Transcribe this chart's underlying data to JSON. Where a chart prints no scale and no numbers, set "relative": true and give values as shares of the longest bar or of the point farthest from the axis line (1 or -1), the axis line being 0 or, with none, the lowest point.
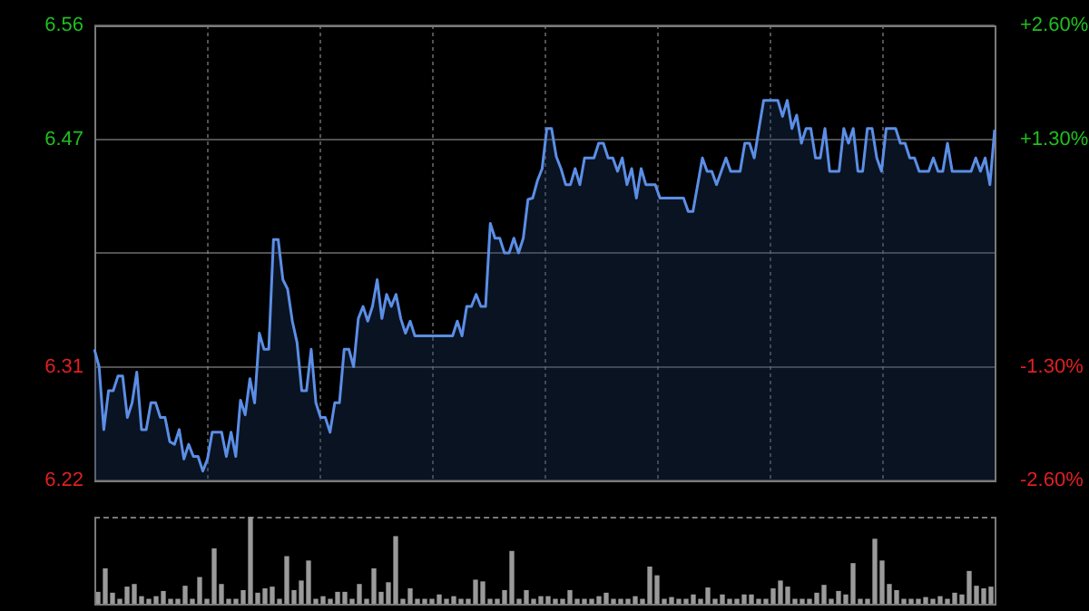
{
  "chart_data": [
    {
      "type": "area",
      "categories": [
        null,
        null,
        null,
        null,
        null,
        null,
        null,
        null,
        null,
        null,
        null,
        null,
        null,
        null,
        null,
        null,
        null,
        null,
        null,
        null,
        null,
        null,
        null,
        null,
        null,
        null,
        null,
        null,
        null,
        null,
        null,
        null,
        null,
        null,
        null,
        null,
        null,
        null,
        null,
        null,
        null,
        null,
        null,
        null,
        null,
        null,
        null,
        null,
        null,
        null,
        null,
        null,
        null,
        null,
        null,
        null,
        null,
        null,
        null,
        null,
        null,
        null,
        null,
        null,
        null,
        null,
        null,
        null,
        null,
        null,
        null,
        null,
        null,
        null,
        null,
        null,
        null,
        null,
        null,
        null,
        null,
        null,
        null,
        null,
        null,
        null,
        null,
        null,
        null,
        null,
        null,
        null,
        null,
        null,
        null,
        null,
        null,
        null,
        null,
        null,
        null,
        null,
        null,
        null,
        null,
        null,
        null,
        null,
        null,
        null,
        null,
        null,
        null,
        null,
        null,
        null,
        null,
        null,
        null,
        null,
        null,
        null,
        null,
        null,
        null,
        null,
        null,
        null,
        null,
        null,
        null,
        null,
        null,
        null,
        null,
        null,
        null,
        null,
        null,
        null,
        null,
        null,
        null,
        null,
        null,
        null,
        null,
        null,
        null,
        null,
        null,
        null,
        null,
        null,
        null,
        null,
        null,
        null,
        null,
        null,
        null,
        null,
        null,
        null,
        null,
        null,
        null,
        null,
        null,
        null,
        null,
        null,
        null,
        null,
        null,
        null,
        null,
        null,
        null,
        null,
        null,
        null,
        null,
        null,
        null,
        null,
        null,
        null,
        null,
        null,
        null,
        null
      ],
      "series": [
        {
          "color": "#5b8ee6",
          "values": [
            6.318,
            6.305,
            6.258,
            6.287,
            6.287,
            6.298,
            6.298,
            6.267,
            6.278,
            6.301,
            6.258,
            6.258,
            6.278,
            6.278,
            6.267,
            6.267,
            6.249,
            6.247,
            6.258,
            6.236,
            6.247,
            6.238,
            6.238,
            6.227,
            6.236,
            6.256,
            6.256,
            6.256,
            6.238,
            6.256,
            6.238,
            6.28,
            6.269,
            6.296,
            6.278,
            6.33,
            6.318,
            6.318,
            6.4,
            6.4,
            6.37,
            6.363,
            6.339,
            6.323,
            6.287,
            6.287,
            6.318,
            6.278,
            6.267,
            6.267,
            6.256,
            6.278,
            6.278,
            6.318,
            6.318,
            6.305,
            6.341,
            6.35,
            6.339,
            6.35,
            6.37,
            6.341,
            6.359,
            6.35,
            6.359,
            6.341,
            6.33,
            6.339,
            6.328,
            6.328,
            6.328,
            6.328,
            6.328,
            6.328,
            6.328,
            6.328,
            6.328,
            6.339,
            6.328,
            6.35,
            6.35,
            6.359,
            6.35,
            6.35,
            6.412,
            6.401,
            6.401,
            6.39,
            6.39,
            6.401,
            6.39,
            6.401,
            6.43,
            6.431,
            6.444,
            6.453,
            6.483,
            6.483,
            6.462,
            6.453,
            6.441,
            6.441,
            6.453,
            6.441,
            6.461,
            6.461,
            6.461,
            6.472,
            6.472,
            6.461,
            6.461,
            6.451,
            6.461,
            6.441,
            6.453,
            6.431,
            6.453,
            6.441,
            6.441,
            6.441,
            6.431,
            6.431,
            6.431,
            6.431,
            6.431,
            6.431,
            6.421,
            6.421,
            6.441,
            6.461,
            6.451,
            6.451,
            6.441,
            6.451,
            6.461,
            6.451,
            6.451,
            6.451,
            6.472,
            6.472,
            6.461,
            6.483,
            6.504,
            6.504,
            6.504,
            6.504,
            6.492,
            6.504,
            6.483,
            6.493,
            6.472,
            6.483,
            6.483,
            6.461,
            6.461,
            6.483,
            6.451,
            6.451,
            6.451,
            6.483,
            6.472,
            6.483,
            6.451,
            6.451,
            6.483,
            6.483,
            6.461,
            6.451,
            6.483,
            6.483,
            6.483,
            6.472,
            6.472,
            6.461,
            6.461,
            6.451,
            6.451,
            6.451,
            6.461,
            6.451,
            6.451,
            6.472,
            6.451,
            6.451,
            6.451,
            6.451,
            6.451,
            6.461,
            6.451,
            6.461,
            6.441,
            6.482
          ]
        }
      ],
      "ylim": [
        6.22,
        6.56
      ],
      "yticks": [
        6.22,
        {
          "value": 6.305,
          "label": "6.31"
        },
        {
          "value": 6.39,
          "label": null
        },
        {
          "value": 6.475,
          "label": "6.47"
        },
        6.56
      ],
      "y2lim": [
        -2.6,
        2.6
      ],
      "y2ticks": [
        {
          "value": -2.6,
          "label": "-2.60%"
        },
        {
          "value": -1.3,
          "label": "-1.30%"
        },
        {
          "value": 1.3,
          "label": "+1.30%"
        },
        {
          "value": 2.6,
          "label": "+2.60%"
        }
      ],
      "grid": true
    },
    {
      "type": "bar",
      "relative": true,
      "categories": [
        null,
        null,
        null,
        null,
        null,
        null,
        null,
        null,
        null,
        null,
        null,
        null,
        null,
        null,
        null,
        null,
        null,
        null,
        null,
        null,
        null,
        null,
        null,
        null,
        null,
        null,
        null,
        null,
        null,
        null,
        null,
        null,
        null,
        null,
        null,
        null,
        null,
        null,
        null,
        null,
        null,
        null,
        null,
        null,
        null,
        null,
        null,
        null,
        null,
        null,
        null,
        null,
        null,
        null,
        null,
        null,
        null,
        null,
        null,
        null,
        null,
        null,
        null,
        null,
        null,
        null,
        null,
        null,
        null,
        null,
        null,
        null,
        null,
        null,
        null,
        null,
        null,
        null,
        null,
        null,
        null,
        null,
        null,
        null,
        null,
        null,
        null,
        null,
        null,
        null,
        null,
        null,
        null,
        null,
        null,
        null,
        null,
        null,
        null,
        null,
        null,
        null,
        null,
        null,
        null,
        null,
        null,
        null,
        null,
        null,
        null,
        null,
        null,
        null,
        null,
        null,
        null,
        null,
        null,
        null,
        null,
        null,
        null,
        null
      ],
      "series": [
        {
          "color": "#9a9a9a",
          "values": [
            0.13,
            0.4,
            0.12,
            0.05,
            0.19,
            0.22,
            0.08,
            0.05,
            0.08,
            0.14,
            0.05,
            0.05,
            0.2,
            0.05,
            0.3,
            0.05,
            0.63,
            0.22,
            0.05,
            0.05,
            0.15,
            1,
            0.12,
            0.17,
            0.19,
            0.05,
            0.54,
            0.15,
            0.26,
            0.49,
            0.05,
            0.08,
            0.05,
            0.13,
            0.13,
            0.05,
            0.22,
            0.05,
            0.4,
            0.13,
            0.24,
            0.77,
            0.05,
            0.17,
            0.05,
            0.05,
            0.05,
            0.1,
            0.05,
            0.08,
            0.05,
            0.05,
            0.27,
            0.25,
            0.05,
            0.05,
            0.15,
            0.6,
            0.05,
            0.15,
            0.05,
            0.08,
            0.08,
            0.05,
            0.05,
            0.15,
            0.05,
            0.05,
            0.05,
            0.08,
            0.12,
            0.05,
            0.05,
            0.05,
            0.08,
            0.05,
            0.42,
            0.32,
            0.05,
            0.07,
            0.05,
            0.05,
            0.1,
            0.05,
            0.18,
            0.05,
            0.1,
            0.05,
            0.05,
            0.1,
            0.1,
            0.05,
            0.05,
            0.17,
            0.26,
            0.19,
            0.05,
            0.05,
            0.05,
            0.12,
            0.21,
            0.05,
            0.14,
            0.1,
            0.46,
            0.05,
            0.05,
            0.74,
            0.49,
            0.22,
            0.15,
            0.05,
            0.05,
            0.05,
            0.07,
            0.05,
            0.08,
            0.05,
            0.12,
            0.1,
            0.37,
            0.2,
            0.17,
            0.19
          ]
        }
      ]
    }
  ]
}
